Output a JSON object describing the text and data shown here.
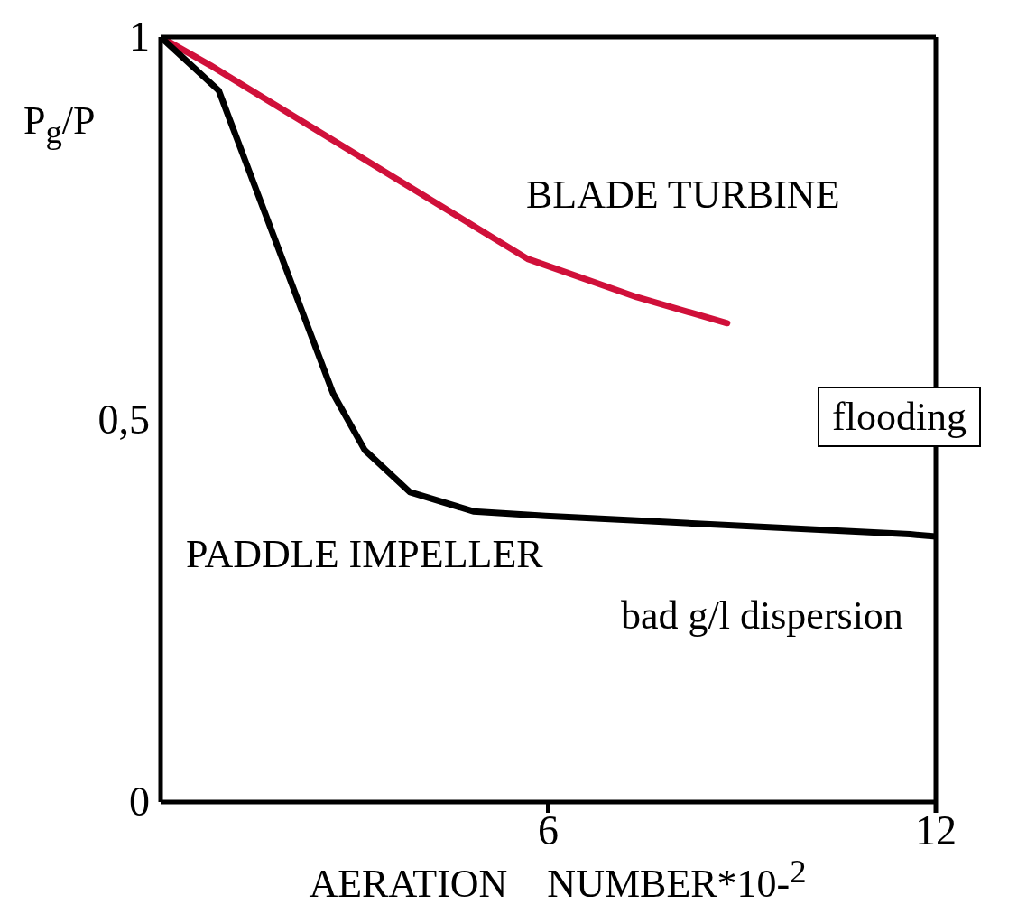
{
  "chart_data": {
    "type": "line",
    "xlabel": "AERATION    NUMBER*10-$^{2}$",
    "ylabel": "P$_{g}$/P",
    "xlim": [
      0,
      12
    ],
    "xticks": [
      6,
      12
    ],
    "ylim": [
      0,
      1
    ],
    "yticks": [
      0,
      {
        "value": 0.5,
        "label": "0,5"
      },
      1
    ],
    "marker": "none",
    "series": [
      {
        "color": "#d0103a",
        "x": [
          0,
          0.77,
          5.68,
          7.37,
          8.77
        ],
        "values": [
          1,
          0.963,
          0.71,
          0.66,
          0.626
        ]
      },
      {
        "color": "#000000",
        "x": [
          0,
          0.9,
          2.67,
          3.16,
          3.86,
          4.84,
          5.96,
          7.37,
          11.6,
          12
        ],
        "values": [
          1,
          0.93,
          0.534,
          0.46,
          0.405,
          0.38,
          0.374,
          0.368,
          0.35,
          0.347
        ]
      }
    ],
    "annotations": [
      "BLADE TURBINE",
      "flooding",
      "PADDLE IMPELLER",
      "bad g/l dispersion"
    ]
  }
}
